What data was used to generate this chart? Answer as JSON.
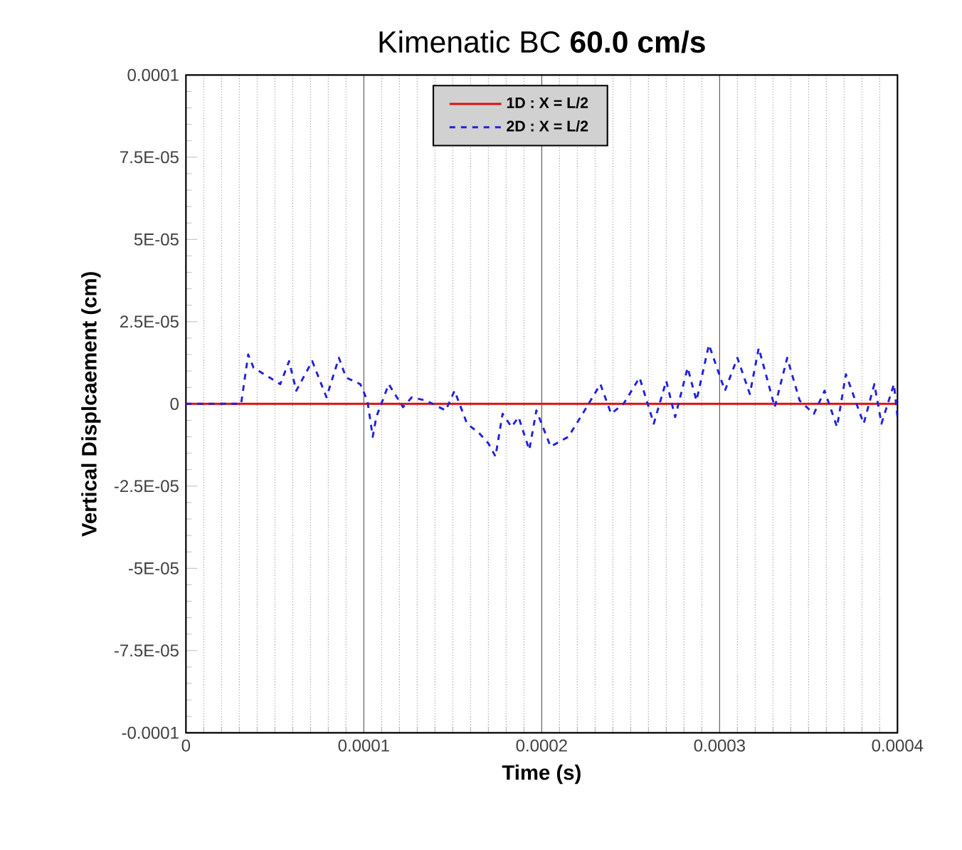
{
  "chart_data": {
    "type": "line",
    "title": "Kimenatic BC **60.0 cm/s**",
    "xlabel": "Time (s)",
    "ylabel": "Vertical Displcaement (cm)",
    "xlim": [
      0,
      0.0004
    ],
    "xticks": [
      0,
      0.0001,
      0.0002,
      0.0003,
      0.0004
    ],
    "ylim": [
      -0.0001,
      0.0001
    ],
    "yticks": [
      {
        "value": -0.0001,
        "label": "-0.0001"
      },
      {
        "value": -7.5e-05,
        "label": "-7.5E-05"
      },
      {
        "value": -5e-05,
        "label": "-5E-05"
      },
      {
        "value": -2.5e-05,
        "label": "-2.5E-05"
      },
      {
        "value": 0,
        "label": "0"
      },
      {
        "value": 2.5e-05,
        "label": "2.5E-05"
      },
      {
        "value": 5e-05,
        "label": "5E-05"
      },
      {
        "value": 7.5e-05,
        "label": "7.5E-05"
      },
      {
        "value": 0.0001,
        "label": "0.0001"
      }
    ],
    "grid": "x",
    "legend": "top",
    "marker": "none",
    "series": [
      {
        "name": "1D : X = L/2",
        "color": "#dd1111",
        "line_style": "solid",
        "x": [
          0,
          0.0004
        ],
        "values": [
          0,
          0
        ]
      },
      {
        "name": "2D : X = L/2",
        "color": "#2222dd",
        "line_style": "dashed",
        "x": [
          0,
          3.1e-05,
          3.5e-05,
          3.8e-05,
          4.7e-05,
          5.3e-05,
          5.8e-05,
          6.2e-05,
          6.7e-05,
          7.1e-05,
          7.9e-05,
          8.6e-05,
          9e-05,
          9.8e-05,
          0.000102,
          0.000105,
          0.000107,
          0.000114,
          0.000122,
          0.000127,
          0.000135,
          0.000146,
          0.000151,
          0.000158,
          0.000165,
          0.00017,
          0.000174,
          0.000178,
          0.000183,
          0.000187,
          0.000193,
          0.000197,
          0.000205,
          0.000215,
          0.000223,
          0.000233,
          0.000239,
          0.000246,
          0.000255,
          0.000263,
          0.00027,
          0.000275,
          0.000282,
          0.000287,
          0.000294,
          0.000303,
          0.00031,
          0.000317,
          0.000322,
          0.000331,
          0.000338,
          0.000345,
          0.000353,
          0.000359,
          0.000366,
          0.000371,
          0.000381,
          0.000387,
          0.000391,
          0.000398,
          0.0004
        ],
        "values": [
          0,
          0,
          1.5e-05,
          1.1e-05,
          8e-06,
          6e-06,
          1.3e-05,
          4e-06,
          9e-06,
          1.3e-05,
          2e-06,
          1.4e-05,
          8e-06,
          6e-06,
          1e-06,
          -1e-05,
          -4e-06,
          6e-06,
          -1e-06,
          2e-06,
          1e-06,
          -2e-06,
          4e-06,
          -6e-06,
          -9e-06,
          -1.2e-05,
          -1.6e-05,
          -3e-06,
          -7e-06,
          -4e-06,
          -1.4e-05,
          -2e-06,
          -1.3e-05,
          -1e-05,
          -3e-06,
          6e-06,
          -3e-06,
          0,
          8e-06,
          -6e-06,
          7e-06,
          -4e-06,
          1.1e-05,
          1e-06,
          1.8e-05,
          4e-06,
          1.4e-05,
          3e-06,
          1.7e-05,
          -1e-06,
          1.4e-05,
          1e-06,
          -3e-06,
          4e-06,
          -7e-06,
          9e-06,
          -6e-06,
          6e-06,
          -6e-06,
          6e-06,
          -4e-06
        ]
      }
    ]
  }
}
